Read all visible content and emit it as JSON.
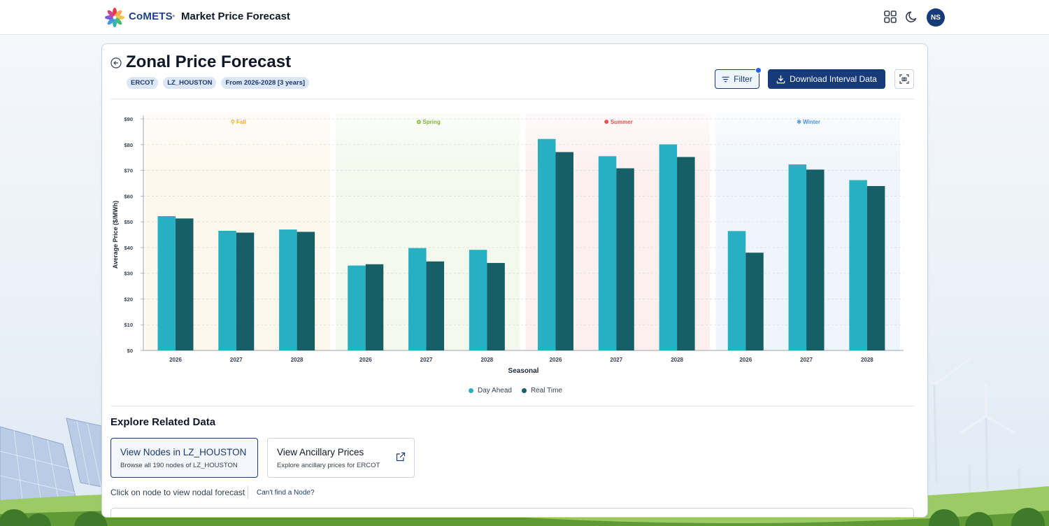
{
  "header": {
    "brand": "CoMETS",
    "separator": "•",
    "app_title": "Market Price Forecast",
    "icons": [
      "apps-grid-icon",
      "moon-icon"
    ],
    "avatar_initials": "NS"
  },
  "page": {
    "title": "Zonal Price Forecast",
    "tags": [
      "ERCOT",
      "LZ_HOUSTON",
      "From 2026-2028 [3 years]"
    ],
    "filter_label": "Filter",
    "download_label": "Download Interval Data"
  },
  "colors": {
    "accent": "#173a7a",
    "day_ahead": "#26b0c2",
    "real_time": "#165f66",
    "fall": "#f2a72e",
    "spring": "#7fb33a",
    "summer": "#e0524a",
    "winter": "#4a90d9"
  },
  "chart_data": {
    "type": "bar",
    "xlabel": "Seasonal",
    "ylabel": "Average Price ($/MWh)",
    "ylim": [
      0,
      90
    ],
    "yticks": [
      "$0",
      "$10",
      "$20",
      "$30",
      "$40",
      "$50",
      "$60",
      "$70",
      "$80",
      "$90"
    ],
    "grid": true,
    "legend_position": "bottom",
    "groups": [
      {
        "season": "Fall",
        "icon": "leaf-icon",
        "categories": [
          "2026",
          "2027",
          "2028"
        ]
      },
      {
        "season": "Spring",
        "icon": "flower-icon",
        "categories": [
          "2026",
          "2027",
          "2028"
        ]
      },
      {
        "season": "Summer",
        "icon": "sun-icon",
        "categories": [
          "2026",
          "2027",
          "2028"
        ]
      },
      {
        "season": "Winter",
        "icon": "snowflake-icon",
        "categories": [
          "2026",
          "2027",
          "2028"
        ]
      }
    ],
    "series": [
      {
        "name": "Day Ahead",
        "values": [
          52.2,
          46.5,
          47.0,
          33.0,
          39.8,
          39.1,
          82.2,
          75.5,
          80.1,
          46.4,
          72.3,
          66.2
        ]
      },
      {
        "name": "Real Time",
        "values": [
          51.3,
          45.8,
          46.1,
          33.5,
          34.6,
          34.0,
          77.1,
          70.8,
          75.2,
          38.0,
          70.3,
          63.9
        ]
      }
    ]
  },
  "explore": {
    "title": "Explore Related Data",
    "cards": [
      {
        "title": "View Nodes in LZ_HOUSTON",
        "subtitle": "Browse all 190 nodes of LZ_HOUSTON"
      },
      {
        "title": "View Ancillary Prices",
        "subtitle": "Explore ancillary prices for ERCOT"
      }
    ],
    "hint": "Click on node to view nodal forecast",
    "cant_find": "Can't find a Node?"
  }
}
